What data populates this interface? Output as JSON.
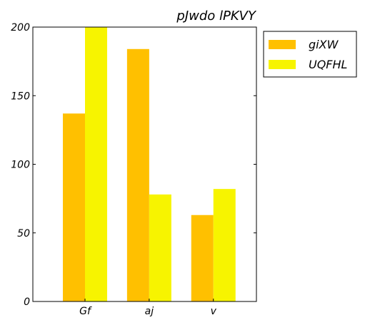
{
  "chart_data": {
    "type": "bar",
    "title": "pJwdo lPKVY",
    "xlabel": "",
    "ylabel": "",
    "categories": [
      "Gf",
      "aj",
      "v"
    ],
    "series": [
      {
        "name": "giXW",
        "values": [
          137,
          184,
          63
        ],
        "color": "#FFC000"
      },
      {
        "name": "UQFHL",
        "values": [
          200,
          78,
          82
        ],
        "color": "#F7F400"
      }
    ],
    "ylim": [
      0,
      200
    ],
    "yticks": [
      0,
      50,
      100,
      150,
      200
    ],
    "grid": false,
    "legend": "outside-top-right"
  }
}
